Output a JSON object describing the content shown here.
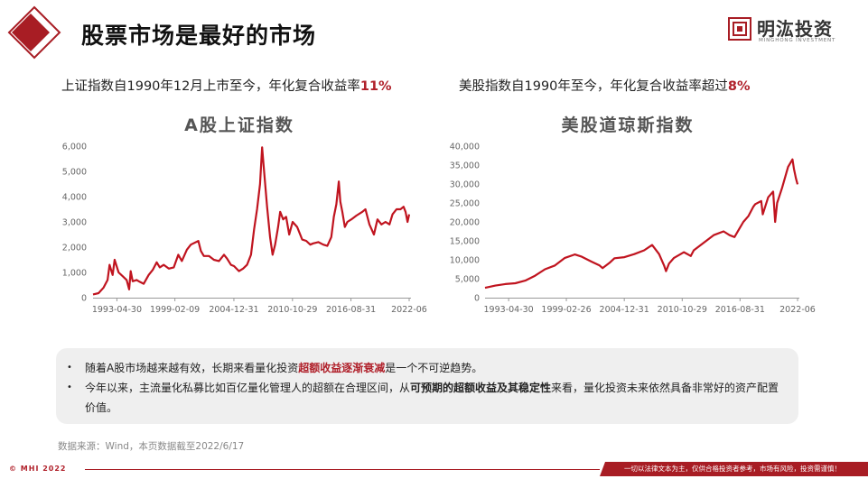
{
  "header": {
    "title": "股票市场是最好的市场",
    "brand_name": "明汯投资",
    "brand_sub": "MINGHONG INVESTMENT"
  },
  "left": {
    "subhead_pre": "上证指数自1990年12月上市至今，年化复合收益率",
    "subhead_hl": "11%",
    "chart_title": "A股上证指数"
  },
  "right": {
    "subhead_pre": "美股指数自1990年至今，年化复合收益率超过",
    "subhead_hl": "8%",
    "chart_title": "美股道琼斯指数"
  },
  "notes": {
    "item1_a": "随着A股市场越来越有效，长期来看量化投资",
    "item1_b": "超额收益逐渐衰减",
    "item1_c": "是一个不可逆趋势。",
    "item2_a": "今年以来，主流量化私募比如百亿量化管理人的超额在合理区间，从",
    "item2_b": "可预期的超额收益及其稳定性",
    "item2_c": "来看，量化投资未来依然具备非常好的资产配置价值。"
  },
  "source": "数据来源：Wind，本页数据截至2022/6/17",
  "footer": {
    "copyright": "© MHI 2022",
    "disclaimer": "一切以法律文本为主，仅供合格投资者参考，市场有风险，投资需谨慎！"
  },
  "chart_data": [
    {
      "type": "line",
      "title": "A股上证指数",
      "color": "#c0141f",
      "ylim": [
        0,
        6000
      ],
      "yticks": [
        0,
        1000,
        2000,
        3000,
        4000,
        5000,
        6000
      ],
      "ytick_labels": [
        "0",
        "1,000",
        "2,000",
        "3,000",
        "4,000",
        "5,000",
        "6,000"
      ],
      "xlim": [
        1990.95,
        2022.46
      ],
      "xticks": [
        1993.33,
        1999.11,
        2004.99,
        2010.83,
        2016.66,
        2022.46
      ],
      "xtick_labels": [
        "1993-04-30",
        "1999-02-09",
        "2004-12-31",
        "2010-10-29",
        "2016-08-31",
        "2022-06"
      ],
      "series": [
        {
          "x": [
            1990.95,
            1991.5,
            1992.0,
            1992.4,
            1992.6,
            1992.9,
            1993.1,
            1993.5,
            1993.9,
            1994.3,
            1994.55,
            1994.7,
            1994.9,
            1995.3,
            1995.6,
            1996.0,
            1996.5,
            1996.9,
            1997.3,
            1997.6,
            1998.0,
            1998.5,
            1999.0,
            1999.45,
            1999.8,
            2000.3,
            2000.7,
            2001.45,
            2001.7,
            2002.0,
            2002.5,
            2003.0,
            2003.5,
            2004.0,
            2004.3,
            2004.7,
            2005.0,
            2005.5,
            2005.9,
            2006.3,
            2006.7,
            2007.0,
            2007.3,
            2007.6,
            2007.8,
            2008.0,
            2008.3,
            2008.6,
            2008.85,
            2009.1,
            2009.4,
            2009.6,
            2009.9,
            2010.2,
            2010.5,
            2010.85,
            2011.3,
            2011.8,
            2012.2,
            2012.6,
            2012.9,
            2013.4,
            2013.9,
            2014.3,
            2014.7,
            2014.95,
            2015.2,
            2015.45,
            2015.6,
            2015.8,
            2016.05,
            2016.3,
            2016.7,
            2017.2,
            2017.8,
            2018.1,
            2018.5,
            2018.95,
            2019.3,
            2019.7,
            2020.1,
            2020.5,
            2020.8,
            2021.2,
            2021.6,
            2021.9,
            2022.1,
            2022.3,
            2022.46
          ],
          "y": [
            127,
            180,
            400,
            700,
            1300,
            900,
            1500,
            1000,
            850,
            700,
            330,
            1050,
            650,
            700,
            630,
            550,
            900,
            1100,
            1400,
            1200,
            1300,
            1150,
            1200,
            1700,
            1450,
            1900,
            2100,
            2245,
            1850,
            1650,
            1650,
            1500,
            1450,
            1700,
            1550,
            1300,
            1250,
            1050,
            1150,
            1300,
            1700,
            2700,
            3500,
            4500,
            5954,
            5000,
            3600,
            2400,
            1700,
            2100,
            2800,
            3400,
            3100,
            3200,
            2500,
            3000,
            2800,
            2300,
            2250,
            2100,
            2150,
            2200,
            2100,
            2050,
            2400,
            3200,
            3700,
            4600,
            3800,
            3400,
            2800,
            3000,
            3100,
            3250,
            3400,
            3500,
            2900,
            2500,
            3100,
            2900,
            3000,
            2900,
            3300,
            3500,
            3500,
            3600,
            3400,
            3000,
            3300
          ]
        }
      ]
    },
    {
      "type": "line",
      "title": "美股道琼斯指数",
      "color": "#c0141f",
      "ylim": [
        0,
        40000
      ],
      "yticks": [
        0,
        5000,
        10000,
        15000,
        20000,
        25000,
        30000,
        35000,
        40000
      ],
      "ytick_labels": [
        "0",
        "5,000",
        "10,000",
        "15,000",
        "20,000",
        "25,000",
        "30,000",
        "35,000",
        "40,000"
      ],
      "xlim": [
        1990.95,
        2022.46
      ],
      "xticks": [
        1993.33,
        1999.15,
        2004.99,
        2010.83,
        2016.66,
        2022.46
      ],
      "xtick_labels": [
        "1993-04-30",
        "1999-02-26",
        "2004-12-31",
        "2010-10-29",
        "2016-08-31",
        "2022-06"
      ],
      "series": [
        {
          "x": [
            1990.95,
            1992.0,
            1993.0,
            1994.0,
            1995.0,
            1996.0,
            1997.0,
            1998.0,
            1999.0,
            2000.0,
            2000.7,
            2001.7,
            2002.5,
            2002.8,
            2003.5,
            2004.0,
            2005.0,
            2006.0,
            2007.0,
            2007.8,
            2008.5,
            2009.0,
            2009.2,
            2009.5,
            2010.0,
            2011.0,
            2011.7,
            2012.0,
            2013.0,
            2014.0,
            2015.0,
            2015.6,
            2016.1,
            2016.5,
            2017.0,
            2017.5,
            2018.0,
            2018.2,
            2018.8,
            2018.95,
            2019.5,
            2020.0,
            2020.2,
            2020.4,
            2020.9,
            2021.5,
            2021.95,
            2022.1,
            2022.3,
            2022.46
          ],
          "y": [
            2600,
            3200,
            3600,
            3800,
            4500,
            5800,
            7500,
            8500,
            10500,
            11400,
            10800,
            9500,
            8500,
            7800,
            9200,
            10400,
            10700,
            11500,
            12500,
            13900,
            11500,
            8500,
            7000,
            9000,
            10500,
            12000,
            11000,
            12500,
            14500,
            16500,
            17500,
            16500,
            16000,
            17800,
            20000,
            21500,
            24000,
            24700,
            25500,
            22000,
            26500,
            28000,
            20000,
            25000,
            29000,
            34500,
            36500,
            34000,
            31500,
            29900
          ]
        }
      ]
    }
  ]
}
